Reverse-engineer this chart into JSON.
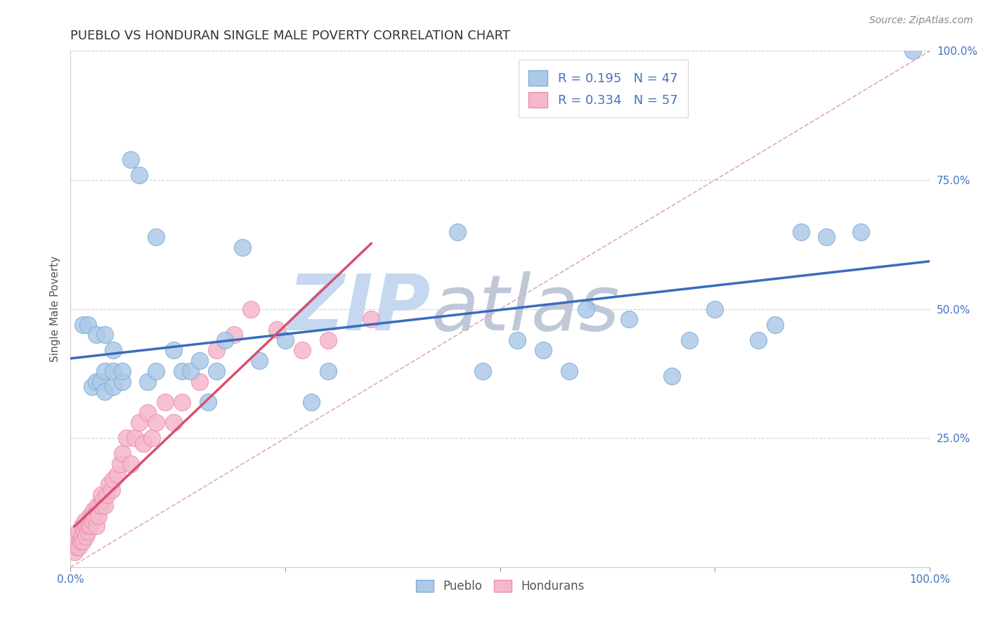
{
  "title": "PUEBLO VS HONDURAN SINGLE MALE POVERTY CORRELATION CHART",
  "source_text": "Source: ZipAtlas.com",
  "ylabel": "Single Male Poverty",
  "xlim": [
    0,
    1
  ],
  "ylim": [
    0,
    1
  ],
  "xticks": [
    0.0,
    0.25,
    0.5,
    0.75,
    1.0
  ],
  "xticklabels": [
    "0.0%",
    "",
    "",
    "",
    "100.0%"
  ],
  "yticks": [
    0.25,
    0.5,
    0.75,
    1.0
  ],
  "yticklabels": [
    "25.0%",
    "50.0%",
    "75.0%",
    "100.0%"
  ],
  "pueblo_color": "#aec9e8",
  "honduran_color": "#f5b8cc",
  "pueblo_edge_color": "#7badd4",
  "honduran_edge_color": "#e890ab",
  "pueblo_R": 0.195,
  "pueblo_N": 47,
  "honduran_R": 0.334,
  "honduran_N": 57,
  "pueblo_line_color": "#3a6bbf",
  "honduran_line_color": "#d94f70",
  "diagonal_color": "#e0a0b0",
  "background_color": "#ffffff",
  "watermark_zip_color": "#c5d8f0",
  "watermark_atlas_color": "#c0c8d8",
  "legend_color": "#4472c4",
  "pueblo_x": [
    0.015,
    0.02,
    0.025,
    0.03,
    0.03,
    0.035,
    0.04,
    0.04,
    0.04,
    0.05,
    0.05,
    0.05,
    0.06,
    0.06,
    0.07,
    0.08,
    0.09,
    0.1,
    0.1,
    0.12,
    0.13,
    0.14,
    0.15,
    0.16,
    0.17,
    0.18,
    0.2,
    0.22,
    0.25,
    0.28,
    0.3,
    0.45,
    0.48,
    0.52,
    0.55,
    0.58,
    0.6,
    0.65,
    0.7,
    0.72,
    0.75,
    0.8,
    0.82,
    0.85,
    0.88,
    0.92,
    0.98
  ],
  "pueblo_y": [
    0.47,
    0.47,
    0.35,
    0.36,
    0.45,
    0.36,
    0.34,
    0.38,
    0.45,
    0.35,
    0.38,
    0.42,
    0.36,
    0.38,
    0.79,
    0.76,
    0.36,
    0.64,
    0.38,
    0.42,
    0.38,
    0.38,
    0.4,
    0.32,
    0.38,
    0.44,
    0.62,
    0.4,
    0.44,
    0.32,
    0.38,
    0.65,
    0.38,
    0.44,
    0.42,
    0.38,
    0.5,
    0.48,
    0.37,
    0.44,
    0.5,
    0.44,
    0.47,
    0.65,
    0.64,
    0.65,
    1.0
  ],
  "honduran_x": [
    0.005,
    0.007,
    0.008,
    0.009,
    0.01,
    0.01,
    0.012,
    0.013,
    0.014,
    0.015,
    0.016,
    0.017,
    0.018,
    0.019,
    0.02,
    0.021,
    0.022,
    0.023,
    0.024,
    0.025,
    0.026,
    0.027,
    0.028,
    0.03,
    0.031,
    0.032,
    0.033,
    0.035,
    0.036,
    0.038,
    0.04,
    0.042,
    0.045,
    0.048,
    0.05,
    0.055,
    0.058,
    0.06,
    0.065,
    0.07,
    0.075,
    0.08,
    0.085,
    0.09,
    0.095,
    0.1,
    0.11,
    0.12,
    0.13,
    0.15,
    0.17,
    0.19,
    0.21,
    0.24,
    0.27,
    0.3,
    0.35
  ],
  "honduran_y": [
    0.03,
    0.04,
    0.05,
    0.06,
    0.04,
    0.07,
    0.05,
    0.06,
    0.08,
    0.05,
    0.07,
    0.09,
    0.06,
    0.08,
    0.07,
    0.08,
    0.09,
    0.1,
    0.08,
    0.1,
    0.09,
    0.11,
    0.1,
    0.08,
    0.11,
    0.12,
    0.1,
    0.12,
    0.14,
    0.13,
    0.12,
    0.14,
    0.16,
    0.15,
    0.17,
    0.18,
    0.2,
    0.22,
    0.25,
    0.2,
    0.25,
    0.28,
    0.24,
    0.3,
    0.25,
    0.28,
    0.32,
    0.28,
    0.32,
    0.36,
    0.42,
    0.45,
    0.5,
    0.46,
    0.42,
    0.44,
    0.48
  ]
}
